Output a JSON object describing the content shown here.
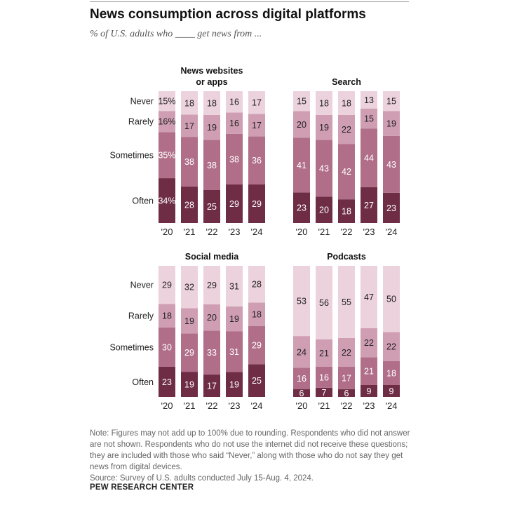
{
  "title": "News consumption across digital platforms",
  "subtitle": "% of U.S. adults who ____ get news from ...",
  "note": "Note: Figures may not add up to 100% due to rounding. Respondents who did not answer are not shown. Respondents who do not use the internet did not receive these questions; they are included with those who said “Never,” along with those who do not say they get news from digital devices.",
  "source": "Source: Survey of U.S. adults conducted July 15-Aug. 4, 2024.",
  "brand": "PEW RESEARCH CENTER",
  "colors": {
    "Often": "#6e2d45",
    "Sometimes": "#b06e88",
    "Rarely": "#d09eb3",
    "Never": "#ecd2dc"
  },
  "chart_data": [
    {
      "type": "bar",
      "stacked": true,
      "title": "News websites or apps",
      "title_lines": [
        "News websites",
        "or apps"
      ],
      "categories": [
        "'20",
        "'21",
        "'22",
        "'23",
        "'24"
      ],
      "series": [
        {
          "name": "Often",
          "values": [
            34,
            28,
            25,
            29,
            29
          ]
        },
        {
          "name": "Sometimes",
          "values": [
            35,
            38,
            38,
            38,
            36
          ]
        },
        {
          "name": "Rarely",
          "values": [
            16,
            17,
            19,
            16,
            17
          ]
        },
        {
          "name": "Never",
          "values": [
            15,
            18,
            18,
            16,
            17
          ]
        }
      ],
      "first_column_percent": true,
      "show_row_labels": true
    },
    {
      "type": "bar",
      "stacked": true,
      "title": "Search",
      "title_lines": [
        "Search"
      ],
      "categories": [
        "'20",
        "'21",
        "'22",
        "'23",
        "'24"
      ],
      "series": [
        {
          "name": "Often",
          "values": [
            23,
            20,
            18,
            27,
            23
          ]
        },
        {
          "name": "Sometimes",
          "values": [
            41,
            43,
            42,
            44,
            43
          ]
        },
        {
          "name": "Rarely",
          "values": [
            20,
            19,
            22,
            15,
            19
          ]
        },
        {
          "name": "Never",
          "values": [
            15,
            18,
            18,
            13,
            15
          ]
        }
      ],
      "first_column_percent": false,
      "show_row_labels": false
    },
    {
      "type": "bar",
      "stacked": true,
      "title": "Social media",
      "title_lines": [
        "Social media"
      ],
      "categories": [
        "'20",
        "'21",
        "'22",
        "'23",
        "'24"
      ],
      "series": [
        {
          "name": "Often",
          "values": [
            23,
            19,
            17,
            19,
            25
          ]
        },
        {
          "name": "Sometimes",
          "values": [
            30,
            29,
            33,
            31,
            29
          ]
        },
        {
          "name": "Rarely",
          "values": [
            18,
            19,
            20,
            19,
            18
          ]
        },
        {
          "name": "Never",
          "values": [
            29,
            32,
            29,
            31,
            28
          ]
        }
      ],
      "first_column_percent": false,
      "show_row_labels": true
    },
    {
      "type": "bar",
      "stacked": true,
      "title": "Podcasts",
      "title_lines": [
        "Podcasts"
      ],
      "categories": [
        "'20",
        "'21",
        "'22",
        "'23",
        "'24"
      ],
      "series": [
        {
          "name": "Often",
          "values": [
            6,
            7,
            6,
            9,
            9
          ]
        },
        {
          "name": "Sometimes",
          "values": [
            16,
            16,
            17,
            21,
            18
          ]
        },
        {
          "name": "Rarely",
          "values": [
            24,
            21,
            22,
            22,
            22
          ]
        },
        {
          "name": "Never",
          "values": [
            53,
            56,
            55,
            47,
            50
          ]
        }
      ],
      "first_column_percent": false,
      "show_row_labels": false
    }
  ]
}
